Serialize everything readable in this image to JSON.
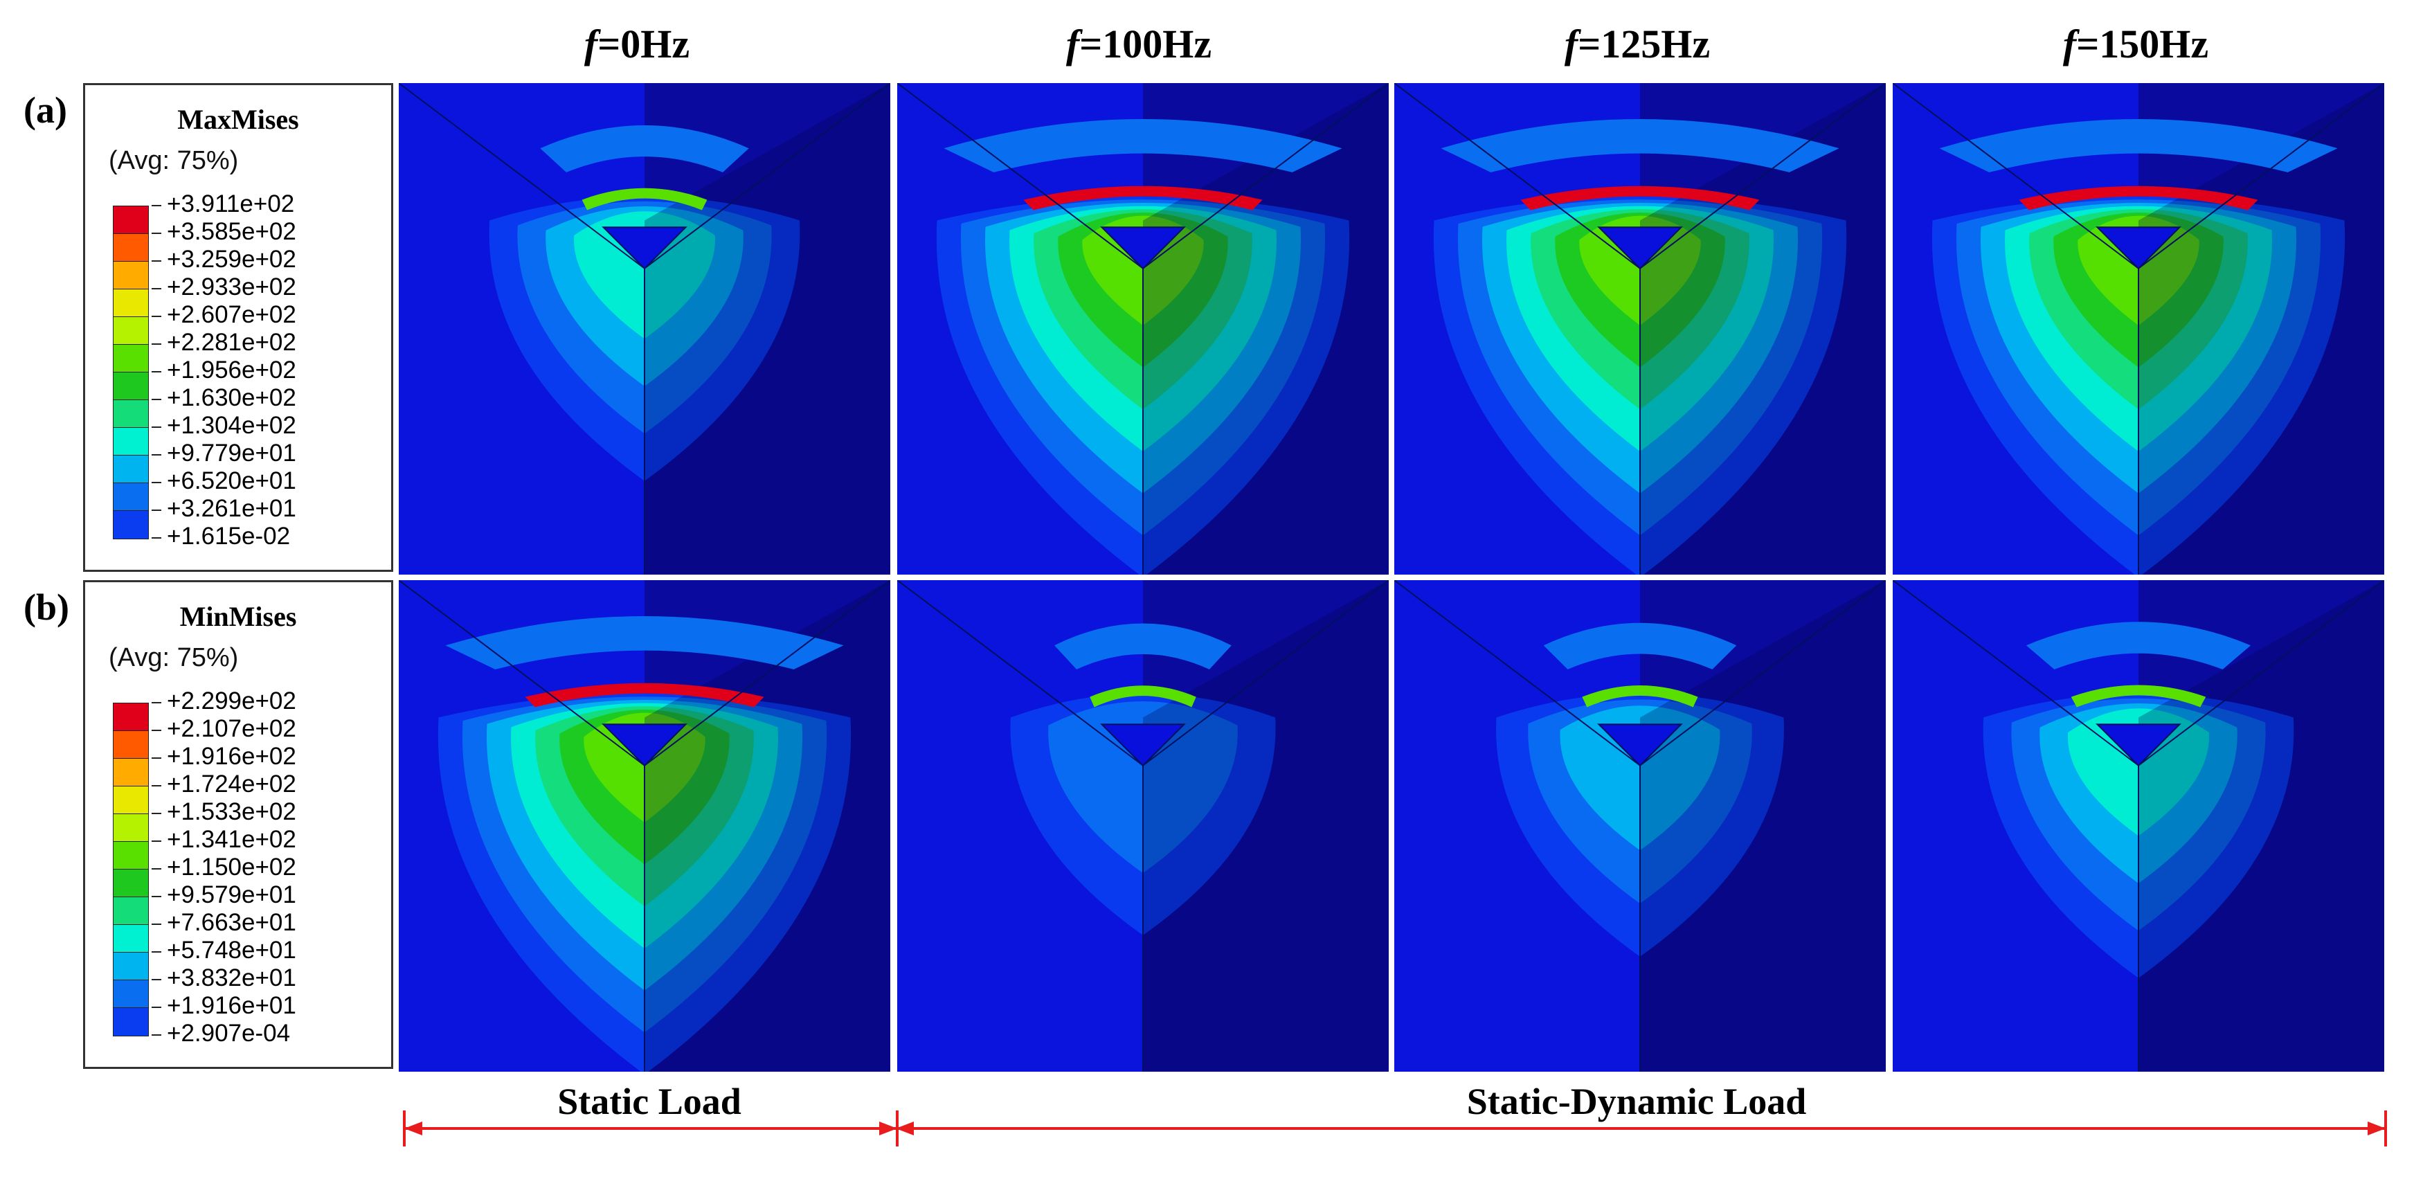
{
  "columns": [
    {
      "prefix": "f",
      "rest": "=0Hz"
    },
    {
      "prefix": "f",
      "rest": "=100Hz"
    },
    {
      "prefix": "f",
      "rest": "=125Hz"
    },
    {
      "prefix": "f",
      "rest": "=150Hz"
    }
  ],
  "rows": [
    {
      "label": "(a)",
      "legend_title": "MaxMises",
      "legend_avg": "(Avg: 75%)",
      "legend_values": [
        "+3.911e+02",
        "+3.585e+02",
        "+3.259e+02",
        "+2.933e+02",
        "+2.607e+02",
        "+2.281e+02",
        "+1.956e+02",
        "+1.630e+02",
        "+1.304e+02",
        "+9.779e+01",
        "+6.520e+01",
        "+3.261e+01",
        "+1.615e-02"
      ]
    },
    {
      "label": "(b)",
      "legend_title": "MinMises",
      "legend_avg": "(Avg: 75%)",
      "legend_values": [
        "+2.299e+02",
        "+2.107e+02",
        "+1.916e+02",
        "+1.724e+02",
        "+1.533e+02",
        "+1.341e+02",
        "+1.150e+02",
        "+9.579e+01",
        "+7.663e+01",
        "+5.748e+01",
        "+3.832e+01",
        "+1.916e+01",
        "+2.907e-04"
      ]
    }
  ],
  "colormap": [
    "#e0001a",
    "#ff5a00",
    "#ffab00",
    "#e9e800",
    "#b5f200",
    "#5ae000",
    "#1ec81e",
    "#14dc78",
    "#00f0d2",
    "#00b4f0",
    "#0a6ef0",
    "#0a3cf0",
    "#0a10dc"
  ],
  "bottom_labels": {
    "static": "Static Load",
    "static_dynamic": "Static-Dynamic Load"
  },
  "arrow_color": "#e81c1c"
}
